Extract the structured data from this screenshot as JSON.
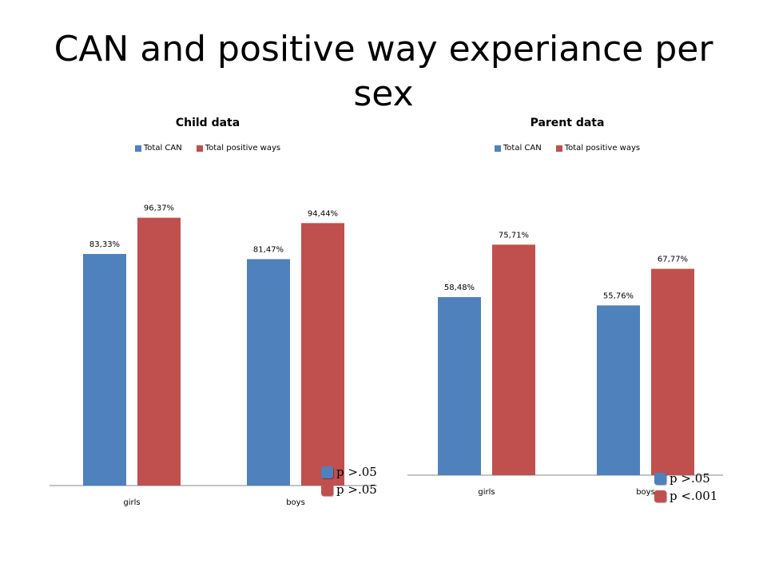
{
  "slide": {
    "title": "CAN and positive way experiance per sex"
  },
  "colors": {
    "total_can": "#4f81bd",
    "total_positive": "#c0504d"
  },
  "chart_data": [
    {
      "type": "bar",
      "title": "Child data",
      "categories": [
        "girls",
        "boys"
      ],
      "series": [
        {
          "name": "Total CAN",
          "values": [
            83.33,
            81.47
          ],
          "labels": [
            "83,33%",
            "81,47%"
          ]
        },
        {
          "name": "Total positive ways",
          "values": [
            96.37,
            94.44
          ],
          "labels": [
            "96,37%",
            "94,44%"
          ]
        }
      ],
      "ylim": [
        0,
        100
      ],
      "legend": "top",
      "grid": false,
      "pvalues": [
        "p >.05",
        "p >.05"
      ]
    },
    {
      "type": "bar",
      "title": "Parent data",
      "categories": [
        "girls",
        "boys"
      ],
      "series": [
        {
          "name": "Total CAN",
          "values": [
            58.48,
            55.76
          ],
          "labels": [
            "58,48%",
            "55,76%"
          ]
        },
        {
          "name": "Total positive ways",
          "values": [
            75.71,
            67.77
          ],
          "labels": [
            "75,71%",
            "67,77%"
          ]
        }
      ],
      "ylim": [
        0,
        80
      ],
      "legend": "top",
      "grid": false,
      "pvalues": [
        "p >.05",
        "p <.001"
      ]
    }
  ]
}
